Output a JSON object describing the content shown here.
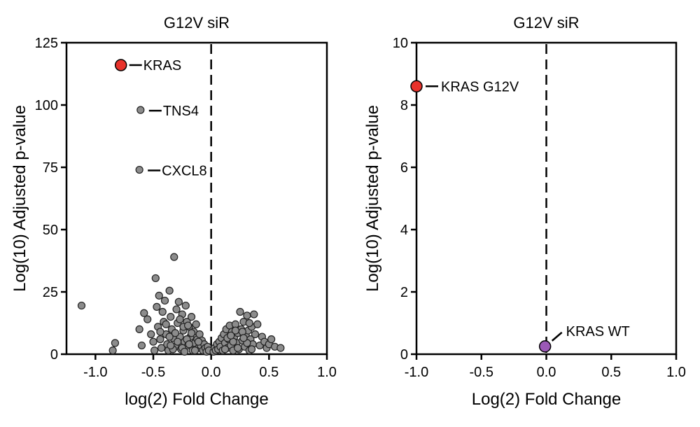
{
  "chart_data": [
    {
      "type": "scatter",
      "title": "G12V siR",
      "xlabel": "log(2) Fold Change",
      "ylabel": "Log(10) Adjusted p-value",
      "xlim": [
        -1.25,
        1.0
      ],
      "ylim": [
        0,
        125
      ],
      "xticks": [
        -1.0,
        -0.5,
        0.0,
        0.5,
        1.0
      ],
      "xtick_labels": [
        "-1.0",
        "-0.5",
        "0.0",
        "0.5",
        "1.0"
      ],
      "yticks": [
        0,
        25,
        50,
        75,
        100,
        125
      ],
      "ytick_labels": [
        "0",
        "25",
        "50",
        "75",
        "100",
        "125"
      ],
      "reference_line": {
        "x": 0,
        "style": "dashed"
      },
      "colors": {
        "background_points": "#8c8c8c",
        "highlight": "#e8322b",
        "edge": "#222222"
      },
      "highlighted": [
        {
          "label": "KRAS",
          "x": -0.78,
          "y": 116,
          "color": "#e8322b"
        }
      ],
      "annotated": [
        {
          "label": "TNS4",
          "x": -0.61,
          "y": 98
        },
        {
          "label": "CXCL8",
          "x": -0.62,
          "y": 74
        }
      ],
      "points": [
        [
          -1.12,
          19.5
        ],
        [
          -0.83,
          4.5
        ],
        [
          -0.85,
          1.5
        ],
        [
          -0.62,
          10
        ],
        [
          -0.6,
          3.5
        ],
        [
          -0.58,
          16.5
        ],
        [
          -0.55,
          14
        ],
        [
          -0.52,
          8
        ],
        [
          -0.5,
          5
        ],
        [
          -0.49,
          1.5
        ],
        [
          -0.48,
          30.5
        ],
        [
          -0.47,
          19
        ],
        [
          -0.46,
          11
        ],
        [
          -0.45,
          23.5
        ],
        [
          -0.44,
          6
        ],
        [
          -0.43,
          2.5
        ],
        [
          -0.42,
          17
        ],
        [
          -0.41,
          13
        ],
        [
          -0.4,
          21.5
        ],
        [
          -0.39,
          8
        ],
        [
          -0.38,
          4
        ],
        [
          -0.37,
          1.5
        ],
        [
          -0.36,
          25.5
        ],
        [
          -0.35,
          15
        ],
        [
          -0.34,
          10
        ],
        [
          -0.33,
          6.5
        ],
        [
          -0.32,
          39
        ],
        [
          -0.31,
          3
        ],
        [
          -0.3,
          18
        ],
        [
          -0.29,
          12.5
        ],
        [
          -0.28,
          21
        ],
        [
          -0.27,
          7
        ],
        [
          -0.26,
          2
        ],
        [
          -0.25,
          16
        ],
        [
          -0.24,
          9.5
        ],
        [
          -0.23,
          5
        ],
        [
          -0.22,
          19.5
        ],
        [
          -0.21,
          13
        ],
        [
          -0.2,
          3.5
        ],
        [
          -0.19,
          11
        ],
        [
          -0.18,
          7
        ],
        [
          -0.17,
          15
        ],
        [
          -0.16,
          1.5
        ],
        [
          -0.15,
          9
        ],
        [
          -0.14,
          4.5
        ],
        [
          -0.13,
          12
        ],
        [
          -0.12,
          6
        ],
        [
          -0.11,
          2.5
        ],
        [
          -0.1,
          8
        ],
        [
          -0.09,
          3.5
        ],
        [
          -0.08,
          5.5
        ],
        [
          -0.07,
          1.5
        ],
        [
          -0.06,
          4
        ],
        [
          -0.05,
          2.5
        ],
        [
          -0.04,
          1
        ],
        [
          -0.03,
          3
        ],
        [
          -0.02,
          1.5
        ],
        [
          -0.27,
          14
        ],
        [
          -0.24,
          11
        ],
        [
          -0.21,
          6
        ],
        [
          -0.19,
          4
        ],
        [
          -0.33,
          2
        ],
        [
          -0.36,
          7
        ],
        [
          -0.39,
          12
        ],
        [
          -0.44,
          9
        ],
        [
          -0.29,
          5
        ],
        [
          -0.25,
          2.5
        ],
        [
          -0.17,
          8.5
        ],
        [
          -0.14,
          1.5
        ],
        [
          -0.11,
          5
        ],
        [
          -0.23,
          1
        ],
        [
          -0.31,
          8.5
        ],
        [
          -0.2,
          11.5
        ],
        [
          -0.35,
          3.5
        ],
        [
          0.02,
          1
        ],
        [
          0.03,
          2.5
        ],
        [
          0.04,
          1.5
        ],
        [
          0.05,
          4
        ],
        [
          0.06,
          2
        ],
        [
          0.07,
          5
        ],
        [
          0.08,
          3
        ],
        [
          0.09,
          6.5
        ],
        [
          0.1,
          1.5
        ],
        [
          0.11,
          8
        ],
        [
          0.12,
          4.5
        ],
        [
          0.13,
          10
        ],
        [
          0.14,
          2.5
        ],
        [
          0.15,
          6
        ],
        [
          0.16,
          11.5
        ],
        [
          0.17,
          3.5
        ],
        [
          0.18,
          9
        ],
        [
          0.19,
          1.5
        ],
        [
          0.2,
          7
        ],
        [
          0.21,
          12
        ],
        [
          0.22,
          4.5
        ],
        [
          0.23,
          8.5
        ],
        [
          0.24,
          2
        ],
        [
          0.25,
          17
        ],
        [
          0.26,
          10
        ],
        [
          0.27,
          5.5
        ],
        [
          0.28,
          13
        ],
        [
          0.29,
          3
        ],
        [
          0.3,
          7.5
        ],
        [
          0.31,
          15.5
        ],
        [
          0.32,
          9.5
        ],
        [
          0.33,
          1.5
        ],
        [
          0.34,
          6
        ],
        [
          0.35,
          11
        ],
        [
          0.36,
          4
        ],
        [
          0.37,
          16
        ],
        [
          0.38,
          8
        ],
        [
          0.4,
          12
        ],
        [
          0.42,
          3.5
        ],
        [
          0.44,
          7
        ],
        [
          0.46,
          5
        ],
        [
          0.48,
          2.5
        ],
        [
          0.5,
          4
        ],
        [
          0.52,
          6
        ],
        [
          0.55,
          3
        ],
        [
          0.6,
          2.5
        ],
        [
          0.14,
          6.5
        ],
        [
          0.19,
          5
        ],
        [
          0.23,
          2.5
        ],
        [
          0.27,
          9
        ],
        [
          0.31,
          4.5
        ],
        [
          0.35,
          2
        ],
        [
          0.28,
          6.5
        ],
        [
          0.33,
          12.5
        ],
        [
          0.21,
          9.5
        ],
        [
          0.17,
          7.5
        ],
        [
          0.12,
          2
        ]
      ]
    },
    {
      "type": "scatter",
      "title": "G12V siR",
      "xlabel": "Log(2) Fold Change",
      "ylabel": "Log(10) Adjusted p-value",
      "xlim": [
        -1.0,
        1.0
      ],
      "ylim": [
        0,
        10
      ],
      "xticks": [
        -1.0,
        -0.5,
        0.0,
        0.5,
        1.0
      ],
      "xtick_labels": [
        "-1.0",
        "-0.5",
        "0.0",
        "0.5",
        "1.0"
      ],
      "yticks": [
        0,
        2,
        4,
        6,
        8,
        10
      ],
      "ytick_labels": [
        "0",
        "2",
        "4",
        "6",
        "8",
        "10"
      ],
      "reference_line": {
        "x": 0,
        "style": "dashed"
      },
      "points_labeled": [
        {
          "label": "KRAS G12V",
          "x": -1.0,
          "y": 8.6,
          "color": "#e8322b"
        },
        {
          "label": "KRAS WT",
          "x": -0.01,
          "y": 0.25,
          "color": "#9b59b6"
        }
      ]
    }
  ]
}
